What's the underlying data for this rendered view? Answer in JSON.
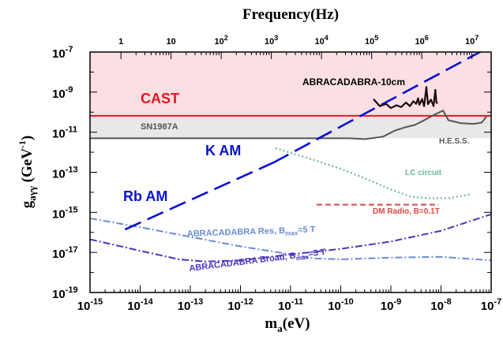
{
  "chart_data": {
    "type": "line",
    "xlabel": "m_a(eV)",
    "ylabel": "g_aγγ (GeV^-1)",
    "top_xlabel": "Frequency(Hz)",
    "x_scale": "log",
    "y_scale": "log",
    "xlim": [
      1e-15,
      1e-07
    ],
    "ylim": [
      1e-19,
      1e-07
    ],
    "x_ticks": [
      {
        "value": 1e-15,
        "base": "10",
        "exp": "-15"
      },
      {
        "value": 1e-14,
        "base": "10",
        "exp": "-14"
      },
      {
        "value": 1e-13,
        "base": "10",
        "exp": "-13"
      },
      {
        "value": 1e-12,
        "base": "10",
        "exp": "-12"
      },
      {
        "value": 1e-11,
        "base": "10",
        "exp": "-11"
      },
      {
        "value": 1e-10,
        "base": "10",
        "exp": "-10"
      },
      {
        "value": 1e-09,
        "base": "10",
        "exp": "-9"
      },
      {
        "value": 1e-08,
        "base": "10",
        "exp": "-8"
      },
      {
        "value": 1e-07,
        "base": "10",
        "exp": "-7"
      }
    ],
    "y_ticks": [
      {
        "value": 1e-07,
        "base": "10",
        "exp": "-7"
      },
      {
        "value": 1e-09,
        "base": "10",
        "exp": "-9"
      },
      {
        "value": 1e-11,
        "base": "10",
        "exp": "-11"
      },
      {
        "value": 1e-13,
        "base": "10",
        "exp": "-13"
      },
      {
        "value": 1e-15,
        "base": "10",
        "exp": "-15"
      },
      {
        "value": 1e-17,
        "base": "10",
        "exp": "-17"
      },
      {
        "value": 1e-19,
        "base": "10",
        "exp": "-19"
      }
    ],
    "top_ticks": [
      {
        "mass": 4.136e-15,
        "base": "1",
        "exp": ""
      },
      {
        "mass": 4.136e-14,
        "base": "10",
        "exp": ""
      },
      {
        "mass": 4.136e-13,
        "base": "10",
        "exp": "2"
      },
      {
        "mass": 4.136e-12,
        "base": "10",
        "exp": "3"
      },
      {
        "mass": 4.136e-11,
        "base": "10",
        "exp": "4"
      },
      {
        "mass": 4.136e-10,
        "base": "10",
        "exp": "5"
      },
      {
        "mass": 4.136e-09,
        "base": "10",
        "exp": "6"
      },
      {
        "mass": 4.136e-08,
        "base": "10",
        "exp": "7"
      }
    ],
    "regions": [
      {
        "name": "CAST",
        "label": "CAST",
        "x": [
          1e-15,
          1e-07
        ],
        "y_low": 6.6e-11,
        "y_high": 1e-07,
        "fill": "#fbdfe3",
        "line": "#e8141c"
      },
      {
        "name": "SN1987A",
        "label": "SN1987A",
        "x": [
          1e-15,
          1e-07
        ],
        "y_low": 5e-12,
        "y_high": 6.6e-11,
        "fill": "#e8e8e8",
        "line": "#555555"
      }
    ],
    "series": [
      {
        "name": "HESS",
        "label": "H.E.S.S.",
        "color": "#555555",
        "style": "solid",
        "points": [
          [
            1.5e-10,
            5e-12
          ],
          [
            3e-10,
            4.5e-12
          ],
          [
            7e-10,
            6e-12
          ],
          [
            1.2e-09,
            1.2e-11
          ],
          [
            2e-09,
            1.8e-11
          ],
          [
            3e-09,
            2.3e-11
          ],
          [
            4.5e-09,
            3.8e-11
          ],
          [
            7e-09,
            7e-11
          ],
          [
            1.1e-08,
            1.2e-10
          ],
          [
            1.4e-08,
            4e-11
          ],
          [
            2.5e-08,
            2.8e-11
          ],
          [
            4.5e-08,
            2.6e-11
          ],
          [
            6.5e-08,
            3e-11
          ],
          [
            8e-08,
            6e-11
          ]
        ]
      },
      {
        "name": "ABRACADABRA-10cm",
        "label": "ABRACADABRA-10cm",
        "color": "#1a0a0a",
        "style": "solid",
        "points": [
          [
            4.5e-10,
            4.5e-10
          ],
          [
            6e-10,
            2e-10
          ],
          [
            8e-10,
            2.6e-10
          ],
          [
            1e-09,
            1.6e-10
          ],
          [
            1.3e-09,
            2.2e-10
          ],
          [
            1.6e-09,
            1.8e-10
          ],
          [
            2e-09,
            3e-10
          ],
          [
            2.4e-09,
            2e-10
          ],
          [
            2.8e-09,
            3.5e-10
          ],
          [
            3.2e-09,
            2.6e-10
          ],
          [
            3.5e-09,
            5e-10
          ],
          [
            3.7e-09,
            2.3e-10
          ],
          [
            4.2e-09,
            4.5e-10
          ],
          [
            4.6e-09,
            2e-10
          ],
          [
            5.1e-09,
            1.8e-09
          ],
          [
            5.5e-09,
            2.5e-10
          ],
          [
            6.3e-09,
            4.2e-10
          ],
          [
            7.1e-09,
            2e-10
          ],
          [
            7.7e-09,
            1.3e-09
          ],
          [
            8.1e-09,
            3e-10
          ],
          [
            8.6e-09,
            2.8e-10
          ]
        ]
      },
      {
        "name": "K AM",
        "label": "K AM",
        "color": "#0a10d8",
        "style": "dashed",
        "points": [
          [
            4.5e-12,
            3e-13
          ],
          [
            1e-07,
            2e-07
          ]
        ]
      },
      {
        "name": "Rb AM",
        "label": "Rb AM",
        "color": "#0a10d8",
        "style": "dashed",
        "points": [
          [
            5e-15,
            1.4e-16
          ],
          [
            4.5e-12,
            3e-13
          ]
        ]
      },
      {
        "name": "LC circuit",
        "label": "LC circuit",
        "color": "#6ab895",
        "style": "dotted",
        "points": [
          [
            5e-12,
            1.6e-12
          ],
          [
            3e-11,
            4e-13
          ],
          [
            1e-10,
            1.5e-13
          ],
          [
            3e-10,
            5e-14
          ],
          [
            1e-09,
            1.4e-14
          ],
          [
            2.5e-09,
            6e-15
          ],
          [
            6e-09,
            5e-15
          ],
          [
            1.5e-08,
            5.2e-15
          ],
          [
            4e-08,
            8e-15
          ]
        ]
      },
      {
        "name": "DM Radio",
        "label": "DM Radio, B=0.1T",
        "color": "#d84848",
        "style": "dashed",
        "points": [
          [
            3.3e-11,
            2.4e-15
          ],
          [
            9e-09,
            2.4e-15
          ]
        ]
      },
      {
        "name": "ABRACADABRA Res",
        "label_main": "ABRACADABRA Res, B",
        "label_sub": "max",
        "label_tail": "=5 T",
        "color": "#6a8cd0",
        "style": "dashdot",
        "points": [
          [
            1e-15,
            5e-16
          ],
          [
            1e-14,
            1.8e-16
          ],
          [
            1e-13,
            6e-17
          ],
          [
            1e-12,
            2e-17
          ],
          [
            1e-11,
            8e-18
          ],
          [
            3e-11,
            5e-18
          ],
          [
            1e-10,
            4.5e-18
          ],
          [
            1e-09,
            5.5e-18
          ],
          [
            1e-08,
            6e-18
          ],
          [
            1e-07,
            4e-18
          ]
        ]
      },
      {
        "name": "ABRACADABRA Broad",
        "label_main": "ABRACADABRA Broad, B",
        "label_sub": "max",
        "label_tail": "=5 T",
        "color": "#4c32c2",
        "style": "dashdot",
        "points": [
          [
            1e-15,
            4.5e-17
          ],
          [
            1e-14,
            1.2e-17
          ],
          [
            6e-14,
            4.5e-18
          ],
          [
            2e-13,
            3.5e-18
          ],
          [
            1e-12,
            4e-18
          ],
          [
            1e-11,
            8e-18
          ],
          [
            1e-10,
            1.5e-17
          ],
          [
            1e-09,
            3.5e-17
          ],
          [
            1e-08,
            1.2e-16
          ],
          [
            1e-07,
            8e-16
          ]
        ]
      }
    ]
  }
}
